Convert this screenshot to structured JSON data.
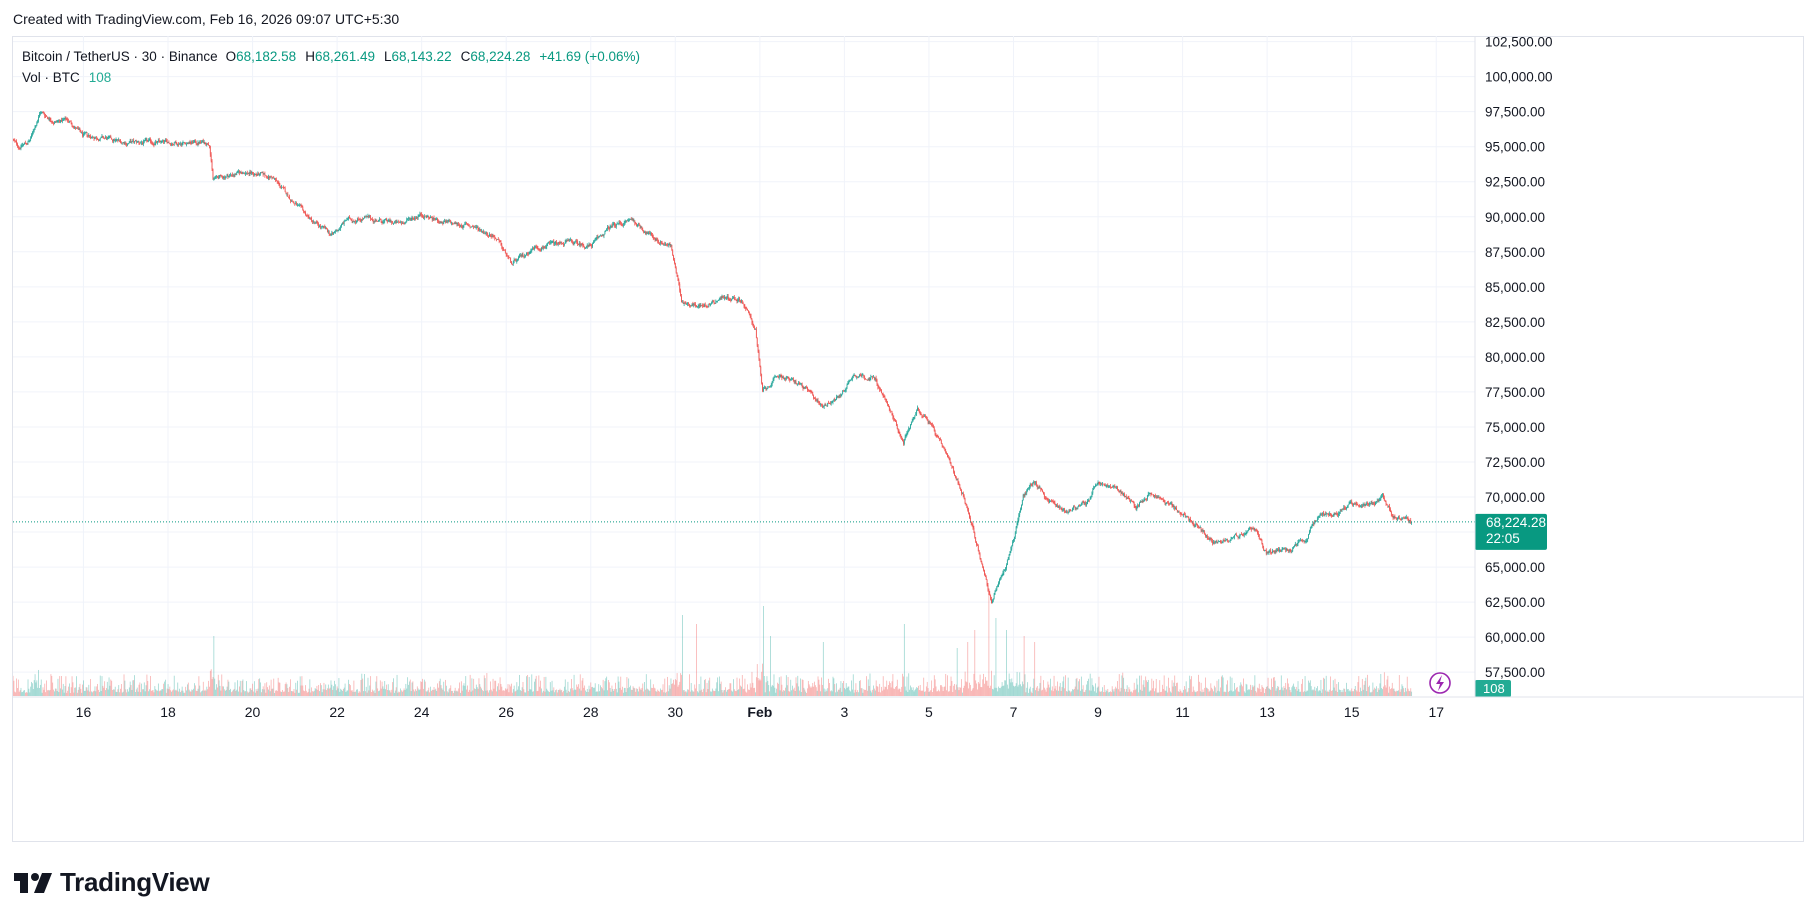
{
  "header": {
    "credit": "Created with TradingView.com, Feb 16, 2026 09:07 UTC+5:30"
  },
  "legend": {
    "symbol": "Bitcoin / TetherUS · 30 · Binance",
    "open_label": "O",
    "open": "68,182.58",
    "high_label": "H",
    "high": "68,261.49",
    "low_label": "L",
    "low": "68,143.22",
    "close_label": "C",
    "close": "68,224.28",
    "change": "+41.69 (+0.06%)",
    "volume_label": "Vol · BTC",
    "volume": "108"
  },
  "price_label": {
    "value": "68,224.28",
    "countdown": "22:05",
    "volume_badge": "108"
  },
  "colors": {
    "up": "#26a69a",
    "down": "#ef5350",
    "badge": "#089981",
    "grid": "#f0f3fa",
    "lightning": "#9c27b0"
  },
  "brand": {
    "name": "TradingView"
  },
  "chart_data": {
    "type": "candlestick",
    "interval": "30",
    "x_tick_labels": [
      "16",
      "18",
      "20",
      "22",
      "24",
      "26",
      "28",
      "30",
      "Feb",
      "3",
      "5",
      "7",
      "9",
      "11",
      "13",
      "15",
      "17"
    ],
    "x_ticks": [
      "2026-01-16",
      "2026-01-18",
      "2026-01-20",
      "2026-01-22",
      "2026-01-24",
      "2026-01-26",
      "2026-01-28",
      "2026-01-30",
      "2026-02-01",
      "2026-02-03",
      "2026-02-05",
      "2026-02-07",
      "2026-02-09",
      "2026-02-11",
      "2026-02-13",
      "2026-02-15",
      "2026-02-17"
    ],
    "x_range": [
      "2026-01-14T08:00",
      "2026-02-17T22:00"
    ],
    "y_ticks": [
      57500,
      60000,
      62500,
      65000,
      67500,
      70000,
      72500,
      75000,
      77500,
      80000,
      82500,
      85000,
      87500,
      90000,
      92500,
      95000,
      97500,
      100000,
      102500
    ],
    "y_tick_labels": [
      "57,500.00",
      "60,000.00",
      "62,500.00",
      "65,000.00",
      "67,500.00",
      "70,000.00",
      "72,500.00",
      "75,000.00",
      "77,500.00",
      "80,000.00",
      "82,500.00",
      "85,000.00",
      "87,500.00",
      "90,000.00",
      "92,500.00",
      "95,000.00",
      "97,500.00",
      "100,000.00",
      "102,500.00"
    ],
    "y_range": [
      55800,
      102900
    ],
    "last_price": 68224.28,
    "price_path": [
      [
        "2026-01-14T08:00",
        95500
      ],
      [
        "2026-01-14T12:00",
        95000
      ],
      [
        "2026-01-14T18:00",
        95400
      ],
      [
        "2026-01-15T00:00",
        97500
      ],
      [
        "2026-01-15T08:00",
        96800
      ],
      [
        "2026-01-15T16:00",
        96900
      ],
      [
        "2026-01-16T00:00",
        95800
      ],
      [
        "2026-01-16T12:00",
        95600
      ],
      [
        "2026-01-17T00:00",
        95300
      ],
      [
        "2026-01-18T00:00",
        95300
      ],
      [
        "2026-01-19T00:00",
        95300
      ],
      [
        "2026-01-19T02:00",
        92700
      ],
      [
        "2026-01-19T20:00",
        93200
      ],
      [
        "2026-01-20T12:00",
        92800
      ],
      [
        "2026-01-21T00:00",
        91000
      ],
      [
        "2026-01-21T12:00",
        89500
      ],
      [
        "2026-01-21T22:00",
        88700
      ],
      [
        "2026-01-22T06:00",
        89800
      ],
      [
        "2026-01-22T16:00",
        89900
      ],
      [
        "2026-01-23T12:00",
        89500
      ],
      [
        "2026-01-24T00:00",
        90200
      ],
      [
        "2026-01-24T12:00",
        89600
      ],
      [
        "2026-01-25T06:00",
        89300
      ],
      [
        "2026-01-25T18:00",
        88600
      ],
      [
        "2026-01-26T04:00",
        86600
      ],
      [
        "2026-01-26T16:00",
        87800
      ],
      [
        "2026-01-27T12:00",
        88200
      ],
      [
        "2026-01-28T00:00",
        87900
      ],
      [
        "2026-01-28T12:00",
        89300
      ],
      [
        "2026-01-29T00:00",
        89800
      ],
      [
        "2026-01-29T12:00",
        88500
      ],
      [
        "2026-01-29T22:00",
        87900
      ],
      [
        "2026-01-30T04:00",
        84000
      ],
      [
        "2026-01-30T16:00",
        83600
      ],
      [
        "2026-01-31T04:00",
        84300
      ],
      [
        "2026-01-31T14:00",
        84100
      ],
      [
        "2026-01-31T22:00",
        82000
      ],
      [
        "2026-02-01T02:00",
        77500
      ],
      [
        "2026-02-01T12:00",
        78700
      ],
      [
        "2026-02-02T00:00",
        78000
      ],
      [
        "2026-02-02T12:00",
        76500
      ],
      [
        "2026-02-02T22:00",
        77200
      ],
      [
        "2026-02-03T06:00",
        78800
      ],
      [
        "2026-02-03T18:00",
        78400
      ],
      [
        "2026-02-04T00:00",
        76800
      ],
      [
        "2026-02-04T10:00",
        74000
      ],
      [
        "2026-02-04T18:00",
        76300
      ],
      [
        "2026-02-05T00:00",
        75500
      ],
      [
        "2026-02-05T12:00",
        72500
      ],
      [
        "2026-02-05T20:00",
        70200
      ],
      [
        "2026-02-06T04:00",
        66500
      ],
      [
        "2026-02-06T12:00",
        62500
      ],
      [
        "2026-02-06T20:00",
        65000
      ],
      [
        "2026-02-07T00:00",
        66800
      ],
      [
        "2026-02-07T06:00",
        70000
      ],
      [
        "2026-02-07T12:00",
        71200
      ],
      [
        "2026-02-07T20:00",
        69800
      ],
      [
        "2026-02-08T06:00",
        69000
      ],
      [
        "2026-02-08T18:00",
        69500
      ],
      [
        "2026-02-09T00:00",
        71000
      ],
      [
        "2026-02-09T12:00",
        70500
      ],
      [
        "2026-02-09T22:00",
        69300
      ],
      [
        "2026-02-10T06:00",
        70300
      ],
      [
        "2026-02-10T18:00",
        69400
      ],
      [
        "2026-02-11T06:00",
        68200
      ],
      [
        "2026-02-11T18:00",
        66800
      ],
      [
        "2026-02-12T06:00",
        67200
      ],
      [
        "2026-02-12T18:00",
        67700
      ],
      [
        "2026-02-13T00:00",
        66000
      ],
      [
        "2026-02-13T12:00",
        66200
      ],
      [
        "2026-02-13T22:00",
        66800
      ],
      [
        "2026-02-14T06:00",
        68800
      ],
      [
        "2026-02-14T18:00",
        68900
      ],
      [
        "2026-02-15T00:00",
        69600
      ],
      [
        "2026-02-15T12:00",
        69400
      ],
      [
        "2026-02-15T18:00",
        70200
      ],
      [
        "2026-02-16T00:00",
        68600
      ],
      [
        "2026-02-16T06:00",
        68500
      ],
      [
        "2026-02-16T10:00",
        68224
      ]
    ],
    "volume_spikes": [
      [
        "2026-01-19T02:00",
        1.0
      ],
      [
        "2026-01-30T04:00",
        1.35
      ],
      [
        "2026-01-30T12:00",
        1.2
      ],
      [
        "2026-02-01T02:00",
        1.5
      ],
      [
        "2026-02-01T06:00",
        1.0
      ],
      [
        "2026-02-02T12:00",
        0.9
      ],
      [
        "2026-02-04T10:00",
        1.2
      ],
      [
        "2026-02-05T16:00",
        0.8
      ],
      [
        "2026-02-05T22:00",
        0.9
      ],
      [
        "2026-02-06T02:00",
        1.1
      ],
      [
        "2026-02-06T10:00",
        1.8
      ],
      [
        "2026-02-06T14:00",
        1.3
      ],
      [
        "2026-02-06T20:00",
        1.1
      ],
      [
        "2026-02-07T06:00",
        1.0
      ],
      [
        "2026-02-07T12:00",
        0.9
      ]
    ]
  }
}
